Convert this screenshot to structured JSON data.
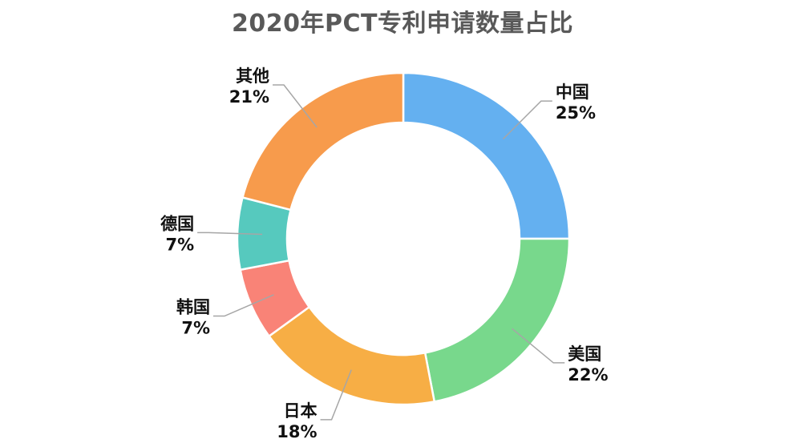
{
  "chart_data": {
    "type": "pie",
    "style": "donut",
    "title": "2020年PCT专利申请数量占比",
    "categories": [
      "中国",
      "美国",
      "日本",
      "韩国",
      "德国",
      "其他"
    ],
    "values": [
      25,
      22,
      18,
      7,
      7,
      21
    ],
    "value_labels": [
      "25%",
      "22%",
      "18%",
      "7%",
      "7%",
      "21%"
    ],
    "colors": [
      "#64B0F0",
      "#78D88C",
      "#F7AE45",
      "#F98377",
      "#56C9BE",
      "#F79B4C"
    ],
    "legend": "none",
    "start_angle": "top",
    "direction": "clockwise"
  }
}
